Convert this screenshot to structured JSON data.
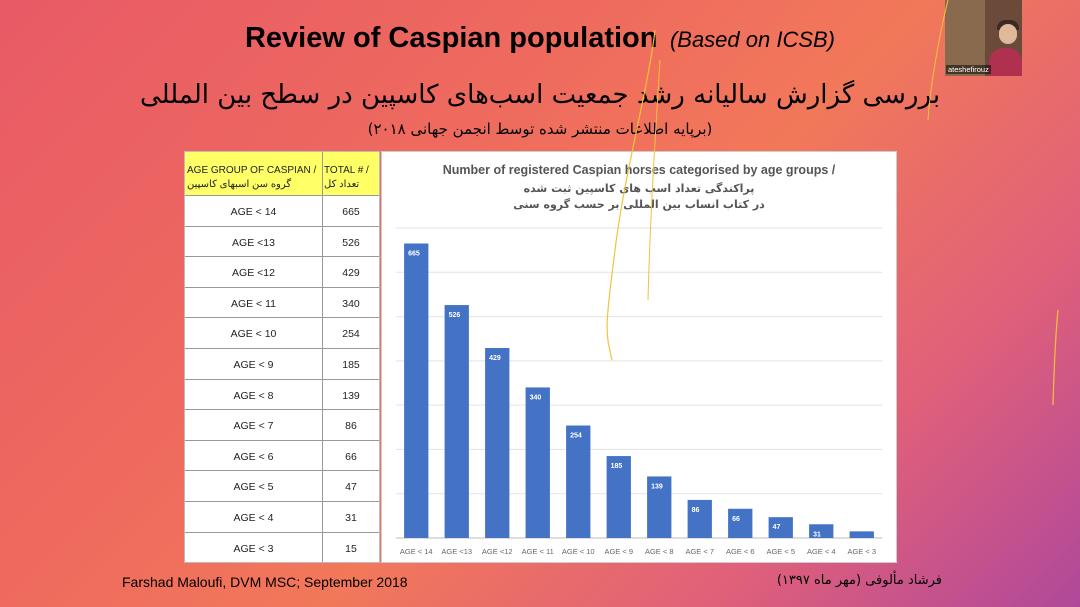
{
  "slide": {
    "title": "Review of Caspian population",
    "title_sub": "(Based on ICSB)",
    "fa_title": "بررسی گزارش سالیانه رشد جمعیت اسب‌های کاسپین در سطح بین المللی",
    "fa_subtitle": "(برپایه اطلاعات منتشر شده توسط انجمن جهانی ۲۰۱۸)",
    "footer_left": "Farshad Maloufi, DVM MSC; September 2018",
    "footer_right": "فرشاد مألوفی (مهر ماه ۱۳۹۷)"
  },
  "table": {
    "header_col1": "AGE GROUP OF CASPIAN / گروه سن اسبهای کاسپین",
    "header_col2": "TOTAL # / تعداد کل",
    "rows": [
      {
        "age": "AGE < 14",
        "total": "665"
      },
      {
        "age": "AGE <13",
        "total": "526"
      },
      {
        "age": "AGE <12",
        "total": "429"
      },
      {
        "age": "AGE < 11",
        "total": "340"
      },
      {
        "age": "AGE < 10",
        "total": "254"
      },
      {
        "age": "AGE < 9",
        "total": "185"
      },
      {
        "age": "AGE < 8",
        "total": "139"
      },
      {
        "age": "AGE < 7",
        "total": "86"
      },
      {
        "age": "AGE < 6",
        "total": "66"
      },
      {
        "age": "AGE < 5",
        "total": "47"
      },
      {
        "age": "AGE < 4",
        "total": "31"
      },
      {
        "age": "AGE < 3",
        "total": "15"
      }
    ]
  },
  "video": {
    "name": "ateshefirouz"
  },
  "chart_data": {
    "type": "bar",
    "title": "Number of registered Caspian horses categorised by age groups /",
    "title_fa_1": "پراکندگی تعداد اسب های کاسپین ثبت شده",
    "title_fa_2": "در کتاب انساب بین المللی بر حسب گروه سنی",
    "categories": [
      "AGE < 14",
      "AGE <13",
      "AGE <12",
      "AGE < 11",
      "AGE < 10",
      "AGE < 9",
      "AGE < 8",
      "AGE < 7",
      "AGE < 6",
      "AGE < 5",
      "AGE < 4",
      "AGE < 3"
    ],
    "values": [
      665,
      526,
      429,
      340,
      254,
      185,
      139,
      86,
      66,
      47,
      31,
      15
    ],
    "ylim": [
      0,
      700
    ],
    "grid": true,
    "bar_color": "#4472c4",
    "label_color": "#ffffff"
  }
}
